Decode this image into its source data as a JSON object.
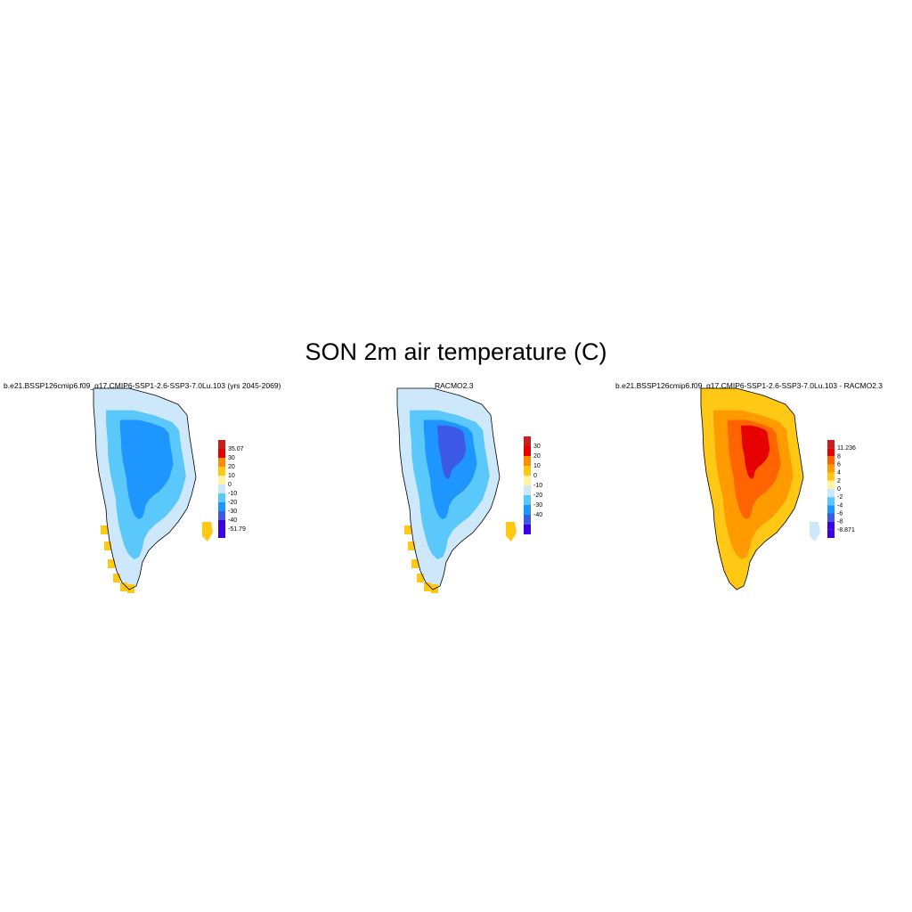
{
  "title": "SON 2m air temperature (C)",
  "chart_data": [
    {
      "type": "heatmap",
      "subtitle": "b.e21.BSSP126cmip6.f09_g17.CMIP6-SSP1-2.6-SSP3-7.0Lu.103 (yrs 2045-2069)",
      "colorbar": {
        "levels": [
          "35.07",
          "30",
          "20",
          "10",
          "0",
          "-10",
          "-20",
          "-30",
          "-40",
          "-51.79"
        ],
        "colors": [
          "#c81e1e",
          "#e60000",
          "#ff8c00",
          "#ffc814",
          "#fff5a0",
          "#cde8fa",
          "#5ac8fa",
          "#1e96ff",
          "#3c5ae6",
          "#3c00e6",
          "#3c00e6"
        ]
      },
      "field_description": {
        "interior_min_band": "-20 to -30",
        "margin": "-10 to 0",
        "south_coast": "0 to 10"
      }
    },
    {
      "type": "heatmap",
      "subtitle": "RACMO2.3",
      "colorbar": {
        "levels": [
          "30",
          "20",
          "10",
          "0",
          "-10",
          "-20",
          "-30",
          "-40"
        ],
        "colors": [
          "#c81e1e",
          "#e60000",
          "#ff8c00",
          "#ffc814",
          "#fff5a0",
          "#cde8fa",
          "#5ac8fa",
          "#1e96ff",
          "#3c5ae6",
          "#3c00e6"
        ]
      },
      "field_description": {
        "interior_min_band": "-30 to -40",
        "margin": "-10 to 0",
        "south_coast": "0 to 10"
      }
    },
    {
      "type": "heatmap",
      "subtitle": "b.e21.BSSP126cmip6.f09_g17.CMIP6-SSP1-2.6-SSP3-7.0Lu.103 - RACMO2.3",
      "colorbar": {
        "levels": [
          "11.236",
          "8",
          "6",
          "4",
          "2",
          "0",
          "-2",
          "-4",
          "-6",
          "-8",
          "-8.871"
        ],
        "colors": [
          "#c81e1e",
          "#e60000",
          "#ff6400",
          "#ff9b00",
          "#ffc814",
          "#fff5a0",
          "#cde8fa",
          "#5ac8fa",
          "#1e96ff",
          "#3c5ae6",
          "#3c00e6",
          "#3c00e6"
        ]
      },
      "field_description": {
        "north_max": "6 to 8",
        "interior": "2 to 4",
        "east_margin": "-8 to 0"
      }
    }
  ]
}
